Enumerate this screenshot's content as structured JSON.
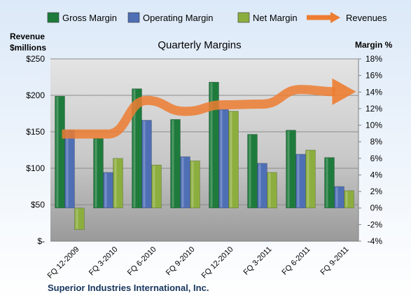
{
  "chart_data": {
    "type": "bar",
    "title": "Quarterly Margins",
    "company": "Superior Industries International, Inc.",
    "left_axis_label": [
      "Revenue",
      "$millions"
    ],
    "right_axis_label": "Margin %",
    "categories": [
      "FQ 12-2009",
      "FQ 3-2010",
      "FQ 6-2010",
      "FQ 9-2010",
      "FQ 12-2010",
      "FQ 3-2011",
      "FQ 6-2011",
      "FQ 9-2011"
    ],
    "left_ticks": [
      "$-",
      "$50",
      "$100",
      "$150",
      "$200",
      "$250"
    ],
    "left_range": [
      0,
      250
    ],
    "right_ticks": [
      "-4%",
      "-2%",
      "0%",
      "2%",
      "4%",
      "6%",
      "8%",
      "10%",
      "12%",
      "14%",
      "16%",
      "18%"
    ],
    "right_range": [
      -4,
      18
    ],
    "series": [
      {
        "name": "Gross Margin",
        "axis": "right",
        "color": "#1E7B3C",
        "values": [
          13.5,
          8.4,
          14.4,
          10.7,
          15.2,
          8.9,
          9.4,
          6.1
        ]
      },
      {
        "name": "Operating Margin",
        "axis": "right",
        "color": "#4F6FB5",
        "values": [
          9.4,
          4.3,
          10.6,
          6.2,
          11.9,
          5.4,
          6.5,
          2.6
        ]
      },
      {
        "name": "Net Margin",
        "axis": "right",
        "color": "#8CAE3E",
        "values": [
          -2.6,
          6.0,
          5.2,
          5.7,
          11.7,
          4.3,
          7.0,
          2.1
        ]
      },
      {
        "name": "Revenues",
        "axis": "left",
        "color": "#ED7D31",
        "values": [
          147,
          147,
          193,
          178,
          187,
          188,
          208,
          205
        ]
      }
    ],
    "grid": true,
    "legend_position": "top"
  }
}
